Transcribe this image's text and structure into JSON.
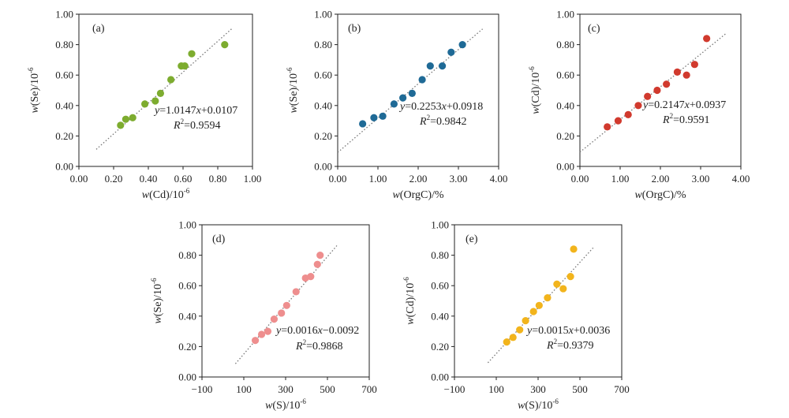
{
  "chart_data": [
    {
      "type": "scatter",
      "panel_label": "(a)",
      "xlabel": {
        "var": "w",
        "rest": "(Cd)/10",
        "sup": "-6"
      },
      "ylabel": {
        "var": "w",
        "rest": "(Se)/10",
        "sup": "-6"
      },
      "xlim": [
        0,
        1.0
      ],
      "ylim": [
        0,
        1.0
      ],
      "xticks": [
        "0.00",
        "0.20",
        "0.40",
        "0.60",
        "0.80",
        "1.00"
      ],
      "yticks": [
        "0.00",
        "0.20",
        "0.40",
        "0.60",
        "0.80",
        "1.00"
      ],
      "color": "#7dac2f",
      "points": [
        [
          0.24,
          0.27
        ],
        [
          0.27,
          0.31
        ],
        [
          0.31,
          0.32
        ],
        [
          0.38,
          0.41
        ],
        [
          0.44,
          0.43
        ],
        [
          0.47,
          0.48
        ],
        [
          0.53,
          0.57
        ],
        [
          0.59,
          0.66
        ],
        [
          0.61,
          0.66
        ],
        [
          0.65,
          0.74
        ],
        [
          0.84,
          0.8
        ]
      ],
      "trend": {
        "x1": 0.1,
        "x2": 0.88,
        "slope": 1.0147,
        "intercept": 0.0107
      },
      "equation": {
        "lhs": "y",
        "mid": "=1.0147",
        "var": "x",
        "rhs": "+0.0107"
      },
      "r2": {
        "base": "R",
        "sup": "2",
        "value": "=0.9594"
      }
    },
    {
      "type": "scatter",
      "panel_label": "(b)",
      "xlabel": {
        "var": "w",
        "rest": "(OrgC)/%",
        "sup": ""
      },
      "ylabel": {
        "var": "w",
        "rest": "(Se)/10",
        "sup": "-6"
      },
      "xlim": [
        0,
        4.0
      ],
      "ylim": [
        0,
        1.0
      ],
      "xticks": [
        "0.00",
        "1.00",
        "2.00",
        "3.00",
        "4.00"
      ],
      "yticks": [
        "0.00",
        "0.20",
        "0.40",
        "0.60",
        "0.80",
        "1.00"
      ],
      "color": "#1f6a96",
      "points": [
        [
          0.62,
          0.28
        ],
        [
          0.9,
          0.32
        ],
        [
          1.12,
          0.33
        ],
        [
          1.4,
          0.41
        ],
        [
          1.62,
          0.45
        ],
        [
          1.85,
          0.48
        ],
        [
          2.1,
          0.57
        ],
        [
          2.3,
          0.66
        ],
        [
          2.6,
          0.66
        ],
        [
          2.82,
          0.75
        ],
        [
          3.1,
          0.8
        ]
      ],
      "trend": {
        "x1": 0.0,
        "x2": 3.6,
        "slope": 0.2253,
        "intercept": 0.0918
      },
      "equation": {
        "lhs": "y",
        "mid": "=0.2253",
        "var": "x",
        "rhs": "+0.0918"
      },
      "r2": {
        "base": "R",
        "sup": "2",
        "value": "=0.9842"
      }
    },
    {
      "type": "scatter",
      "panel_label": "(c)",
      "xlabel": {
        "var": "w",
        "rest": "(OrgC)/%",
        "sup": ""
      },
      "ylabel": {
        "var": "w",
        "rest": "(Cd)/10",
        "sup": "-6"
      },
      "xlim": [
        0,
        4.0
      ],
      "ylim": [
        0,
        1.0
      ],
      "xticks": [
        "0.00",
        "1.00",
        "2.00",
        "3.00",
        "4.00"
      ],
      "yticks": [
        "0.00",
        "0.20",
        "0.40",
        "0.60",
        "0.80",
        "1.00"
      ],
      "color": "#d13a2e",
      "points": [
        [
          0.68,
          0.26
        ],
        [
          0.95,
          0.3
        ],
        [
          1.2,
          0.34
        ],
        [
          1.45,
          0.4
        ],
        [
          1.68,
          0.46
        ],
        [
          1.92,
          0.5
        ],
        [
          2.15,
          0.54
        ],
        [
          2.42,
          0.62
        ],
        [
          2.65,
          0.6
        ],
        [
          2.85,
          0.67
        ],
        [
          3.15,
          0.84
        ]
      ],
      "trend": {
        "x1": 0.0,
        "x2": 3.65,
        "slope": 0.2147,
        "intercept": 0.0937
      },
      "equation": {
        "lhs": "y",
        "mid": "=0.2147",
        "var": "x",
        "rhs": "+0.0937"
      },
      "r2": {
        "base": "R",
        "sup": "2",
        "value": "=0.9591"
      }
    },
    {
      "type": "scatter",
      "panel_label": "(d)",
      "xlabel": {
        "var": "w",
        "rest": "(S)/10",
        "sup": "-6"
      },
      "ylabel": {
        "var": "w",
        "rest": "(Se)/10",
        "sup": "-6"
      },
      "xlim": [
        -100,
        700
      ],
      "ylim": [
        0,
        1.0
      ],
      "xticks": [
        "−100",
        "100",
        "300",
        "500",
        "700"
      ],
      "yticks": [
        "0.00",
        "0.20",
        "0.40",
        "0.60",
        "0.80",
        "1.00"
      ],
      "color": "#ee8e8e",
      "points": [
        [
          155,
          0.24
        ],
        [
          185,
          0.28
        ],
        [
          215,
          0.3
        ],
        [
          245,
          0.38
        ],
        [
          280,
          0.42
        ],
        [
          305,
          0.47
        ],
        [
          350,
          0.56
        ],
        [
          395,
          0.65
        ],
        [
          420,
          0.66
        ],
        [
          452,
          0.74
        ],
        [
          465,
          0.8
        ]
      ],
      "trend": {
        "x1": 60,
        "x2": 545,
        "slope": 0.0016,
        "intercept": -0.0092
      },
      "equation": {
        "lhs": "y",
        "mid": "=0.0016",
        "var": "x",
        "rhs": "−0.0092"
      },
      "r2": {
        "base": "R",
        "sup": "2",
        "value": "=0.9868"
      }
    },
    {
      "type": "scatter",
      "panel_label": "(e)",
      "xlabel": {
        "var": "w",
        "rest": "(S)/10",
        "sup": "-6"
      },
      "ylabel": {
        "var": "w",
        "rest": "(Cd)/10",
        "sup": "-6"
      },
      "xlim": [
        -100,
        700
      ],
      "ylim": [
        0,
        1.0
      ],
      "xticks": [
        "−100",
        "100",
        "300",
        "500",
        "700"
      ],
      "yticks": [
        "0.00",
        "0.20",
        "0.40",
        "0.60",
        "0.80",
        "1.00"
      ],
      "color": "#f2b41c",
      "points": [
        [
          150,
          0.23
        ],
        [
          180,
          0.26
        ],
        [
          212,
          0.31
        ],
        [
          240,
          0.37
        ],
        [
          278,
          0.43
        ],
        [
          305,
          0.47
        ],
        [
          345,
          0.52
        ],
        [
          390,
          0.61
        ],
        [
          420,
          0.58
        ],
        [
          455,
          0.66
        ],
        [
          470,
          0.84
        ]
      ],
      "trend": {
        "x1": 60,
        "x2": 565,
        "slope": 0.0015,
        "intercept": 0.0036
      },
      "equation": {
        "lhs": "y",
        "mid": "=0.0015",
        "var": "x",
        "rhs": "+0.0036"
      },
      "r2": {
        "base": "R",
        "sup": "2",
        "value": "=0.9379"
      }
    }
  ]
}
